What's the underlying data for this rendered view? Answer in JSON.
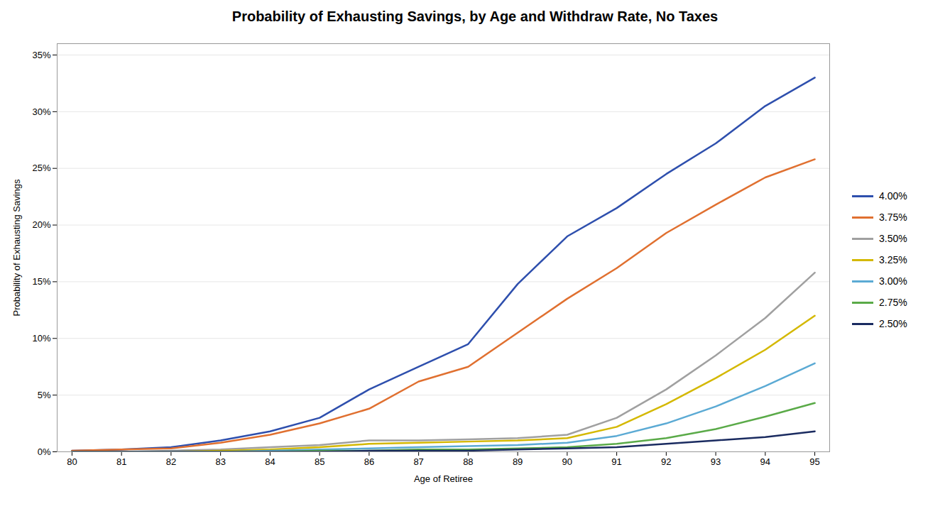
{
  "chart_data": {
    "type": "line",
    "title": "Probability of Exhausting Savings, by Age and Withdraw Rate, No Taxes",
    "xlabel": "Age of Retiree",
    "ylabel": "Probability of Exhausting Savings",
    "x": [
      80,
      81,
      82,
      83,
      84,
      85,
      86,
      87,
      88,
      89,
      90,
      91,
      92,
      93,
      94,
      95
    ],
    "series": [
      {
        "name": "4.00%",
        "color": "#2E4FAD",
        "values": [
          0.001,
          0.002,
          0.004,
          0.01,
          0.018,
          0.03,
          0.055,
          0.075,
          0.095,
          0.148,
          0.19,
          0.215,
          0.245,
          0.272,
          0.305,
          0.33
        ]
      },
      {
        "name": "3.75%",
        "color": "#E07030",
        "values": [
          0.001,
          0.002,
          0.003,
          0.008,
          0.015,
          0.025,
          0.038,
          0.062,
          0.075,
          0.105,
          0.135,
          0.162,
          0.193,
          0.218,
          0.242,
          0.258
        ]
      },
      {
        "name": "3.50%",
        "color": "#A0A0A0",
        "values": [
          0.0,
          0.0,
          0.001,
          0.002,
          0.004,
          0.006,
          0.01,
          0.01,
          0.011,
          0.012,
          0.015,
          0.03,
          0.055,
          0.085,
          0.118,
          0.158
        ]
      },
      {
        "name": "3.25%",
        "color": "#D4B800",
        "values": [
          0.0,
          0.0,
          0.0,
          0.001,
          0.002,
          0.004,
          0.007,
          0.008,
          0.009,
          0.01,
          0.012,
          0.022,
          0.042,
          0.065,
          0.09,
          0.12
        ]
      },
      {
        "name": "3.00%",
        "color": "#5BAAD4",
        "values": [
          0.0,
          0.0,
          0.0,
          0.0,
          0.001,
          0.002,
          0.003,
          0.004,
          0.005,
          0.006,
          0.008,
          0.014,
          0.025,
          0.04,
          0.058,
          0.078
        ]
      },
      {
        "name": "2.75%",
        "color": "#5AAA48",
        "values": [
          0.0,
          0.0,
          0.0,
          0.0,
          0.0,
          0.001,
          0.001,
          0.002,
          0.002,
          0.003,
          0.004,
          0.007,
          0.012,
          0.02,
          0.031,
          0.043
        ]
      },
      {
        "name": "2.50%",
        "color": "#1A2B60",
        "values": [
          0.0,
          0.0,
          0.0,
          0.0,
          0.0,
          0.0,
          0.001,
          0.001,
          0.001,
          0.002,
          0.003,
          0.004,
          0.007,
          0.01,
          0.013,
          0.018
        ]
      }
    ],
    "xlim": [
      79.7,
      95.3
    ],
    "xticks": [
      80,
      81,
      82,
      83,
      84,
      85,
      86,
      87,
      88,
      89,
      90,
      91,
      92,
      93,
      94,
      95
    ],
    "ylim": [
      0,
      0.36
    ],
    "yticks": [
      {
        "value": 0.0,
        "label": "0%"
      },
      {
        "value": 0.05,
        "label": "5%"
      },
      {
        "value": 0.1,
        "label": "10%"
      },
      {
        "value": 0.15,
        "label": "15%"
      },
      {
        "value": 0.2,
        "label": "20%"
      },
      {
        "value": 0.25,
        "label": "25%"
      },
      {
        "value": 0.3,
        "label": "30%"
      },
      {
        "value": 0.35,
        "label": "35%"
      }
    ],
    "grid": "y",
    "legend": "right"
  }
}
